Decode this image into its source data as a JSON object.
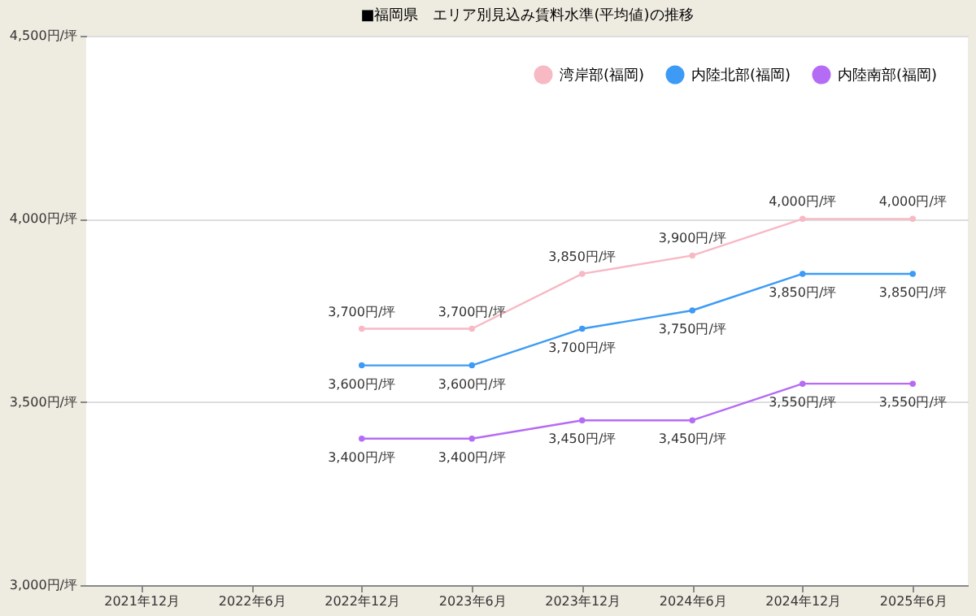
{
  "chart_data": {
    "type": "line",
    "title": "■福岡県　エリア別見込み賃料水準(平均値)の推移",
    "categories": [
      "2021年12月",
      "2022年6月",
      "2022年12月",
      "2023年6月",
      "2023年12月",
      "2024年6月",
      "2024年12月",
      "2025年6月"
    ],
    "series": [
      {
        "name": "湾岸部(福岡)",
        "color": "#f7b9c4",
        "values": [
          null,
          null,
          3700,
          3700,
          3850,
          3900,
          4000,
          4000
        ],
        "value_labels": [
          null,
          null,
          "3,700円/坪",
          "3,700円/坪",
          "3,850円/坪",
          "3,900円/坪",
          "4,000円/坪",
          "4,000円/坪"
        ]
      },
      {
        "name": "内陸北部(福岡)",
        "color": "#3d9bf5",
        "values": [
          null,
          null,
          3600,
          3600,
          3700,
          3750,
          3850,
          3850
        ],
        "value_labels": [
          null,
          null,
          "3,600円/坪",
          "3,600円/坪",
          "3,700円/坪",
          "3,750円/坪",
          "3,850円/坪",
          "3,850円/坪"
        ]
      },
      {
        "name": "内陸南部(福岡)",
        "color": "#b56cf5",
        "values": [
          null,
          null,
          3400,
          3400,
          3450,
          3450,
          3550,
          3550
        ],
        "value_labels": [
          null,
          null,
          "3,400円/坪",
          "3,400円/坪",
          "3,450円/坪",
          "3,450円/坪",
          "3,550円/坪",
          "3,550円/坪"
        ]
      }
    ],
    "ylim": [
      3000,
      4500
    ],
    "yticks": [
      {
        "value": 3000,
        "label": "3,000円/坪"
      },
      {
        "value": 3500,
        "label": "3,500円/坪"
      },
      {
        "value": 4000,
        "label": "4,000円/坪"
      },
      {
        "value": 4500,
        "label": "4,500円/坪"
      }
    ],
    "grid": "y",
    "legend": "top right",
    "marker": "circle",
    "line_style": "solid"
  }
}
